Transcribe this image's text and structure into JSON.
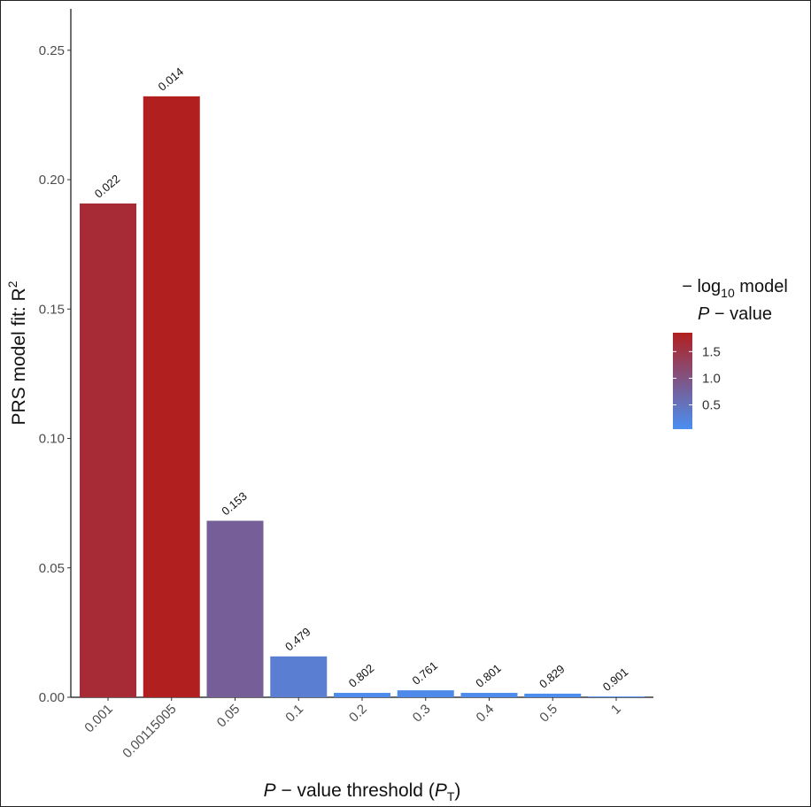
{
  "chart_data": {
    "type": "bar",
    "categories": [
      "0.001",
      "0.00115005",
      "0.05",
      "0.1",
      "0.2",
      "0.3",
      "0.4",
      "0.5",
      "1"
    ],
    "values": [
      0.1908,
      0.2322,
      0.0682,
      0.0158,
      0.0017,
      0.0027,
      0.0017,
      0.0014,
      0.0003
    ],
    "p_values": [
      0.022,
      0.014,
      0.153,
      0.479,
      0.802,
      0.761,
      0.801,
      0.829,
      0.901
    ],
    "ylim": [
      0,
      0.266
    ],
    "yticks": [
      {
        "value": 0,
        "label": "0.00"
      },
      0.05,
      {
        "value": 0.1,
        "label": "0.10"
      },
      0.15,
      {
        "value": 0.2,
        "label": "0.20"
      },
      0.25
    ],
    "y_label": [
      "PRS model fit:  R",
      "2"
    ],
    "x_label": [
      "P",
      " − value threshold (",
      "P",
      "T",
      ")"
    ],
    "colorbar": {
      "title": [
        "− log",
        "10",
        " model",
        "P",
        " − value"
      ],
      "lim": [
        0.045,
        1.854
      ],
      "ticks": [
        0.5,
        {
          "value": 1,
          "label": "1.0"
        },
        1.5
      ],
      "low_color": "#4a8ff2",
      "high_color": "#b21f1f"
    }
  }
}
